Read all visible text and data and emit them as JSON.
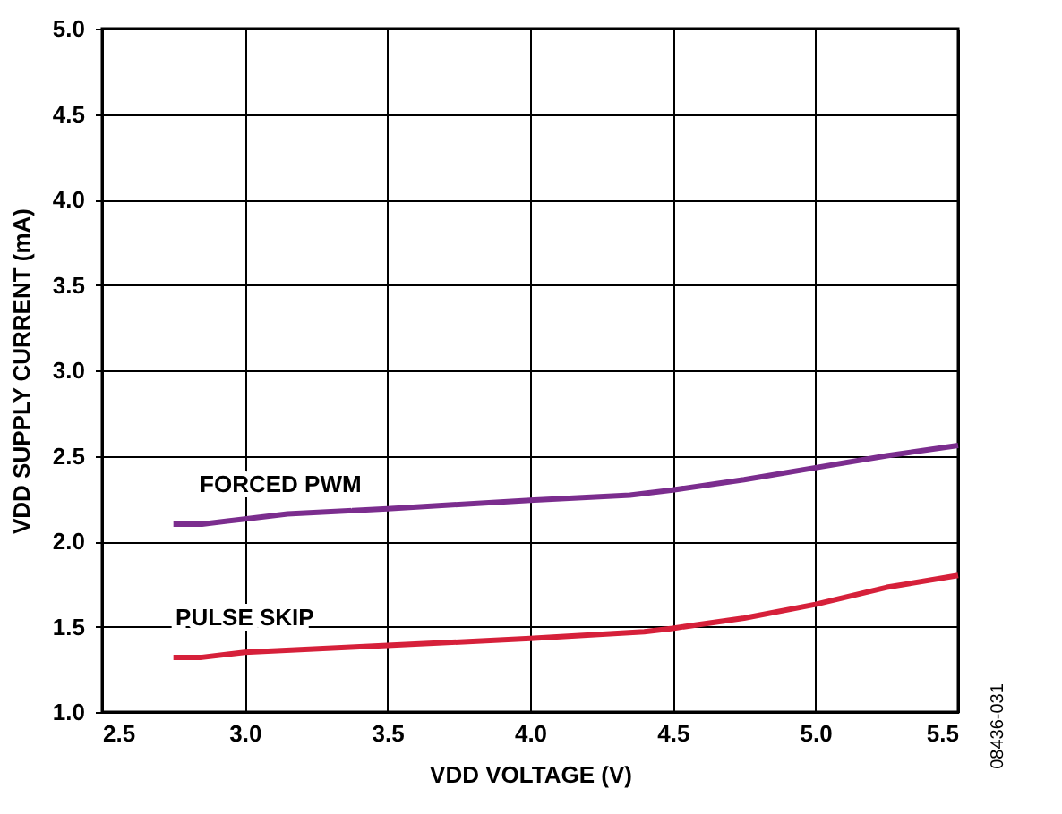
{
  "chart_data": {
    "type": "line",
    "xlabel": "VDD VOLTAGE (V)",
    "ylabel": "VDD SUPPLY CURRENT (mA)",
    "xlim": [
      2.5,
      5.5
    ],
    "xticks": [
      {
        "value": 2.5,
        "label": "2.5"
      },
      {
        "value": 3.0,
        "label": "3.0"
      },
      {
        "value": 3.5,
        "label": "3.5"
      },
      {
        "value": 4.0,
        "label": "4.0"
      },
      {
        "value": 4.5,
        "label": "4.5"
      },
      {
        "value": 5.0,
        "label": "5.0"
      },
      {
        "value": 5.5,
        "label": "5.5"
      }
    ],
    "ylim": [
      1.0,
      5.0
    ],
    "yticks": [
      {
        "value": 1.0,
        "label": "1.0"
      },
      {
        "value": 1.5,
        "label": "1.5"
      },
      {
        "value": 2.0,
        "label": "2.0"
      },
      {
        "value": 2.5,
        "label": "2.5"
      },
      {
        "value": 3.0,
        "label": "3.0"
      },
      {
        "value": 3.5,
        "label": "3.5"
      },
      {
        "value": 4.0,
        "label": "4.0"
      },
      {
        "value": 4.5,
        "label": "4.5"
      },
      {
        "value": 5.0,
        "label": "5.0"
      }
    ],
    "grid": true,
    "marker": "none",
    "line_style": "solid",
    "series": [
      {
        "name": "FORCED PWM",
        "color": "#7b2d8e",
        "x": [
          2.75,
          2.85,
          3.0,
          3.15,
          3.5,
          4.0,
          4.35,
          4.5,
          4.75,
          5.0,
          5.25,
          5.5
        ],
        "values": [
          2.1,
          2.1,
          2.13,
          2.16,
          2.19,
          2.24,
          2.27,
          2.3,
          2.36,
          2.43,
          2.5,
          2.56
        ]
      },
      {
        "name": "PULSE SKIP",
        "color": "#d6203a",
        "x": [
          2.75,
          2.85,
          3.0,
          3.5,
          4.0,
          4.4,
          4.5,
          4.75,
          5.0,
          5.25,
          5.5
        ],
        "values": [
          1.32,
          1.32,
          1.35,
          1.39,
          1.43,
          1.47,
          1.49,
          1.55,
          1.63,
          1.73,
          1.8
        ]
      }
    ],
    "annotations": [
      "08436-031"
    ]
  }
}
